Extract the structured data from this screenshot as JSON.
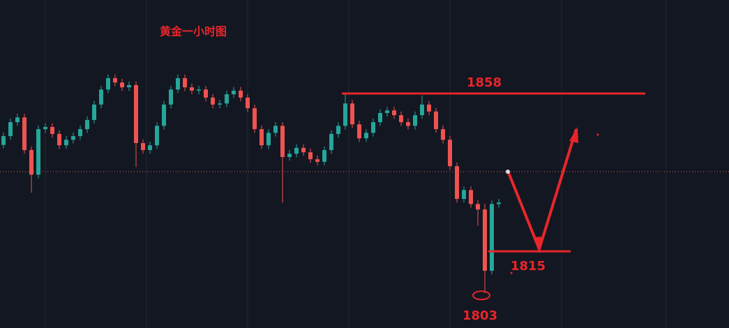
{
  "chart_data": {
    "type": "candlestick",
    "title": "黄金一小时图",
    "open": [
      1844.0,
      1846.4,
      1850.2,
      1851.5,
      1842.6,
      1835.9,
      1848.3,
      1848.9,
      1847.0,
      1843.9,
      1845.4,
      1846.4,
      1848.3,
      1850.8,
      1855.0,
      1859.1,
      1862.2,
      1861.0,
      1859.7,
      1860.3,
      1844.5,
      1842.6,
      1843.9,
      1849.2,
      1855.0,
      1859.1,
      1862.2,
      1859.7,
      1858.8,
      1859.1,
      1856.9,
      1855.0,
      1855.3,
      1857.8,
      1858.8,
      1856.9,
      1854.0,
      1848.3,
      1843.9,
      1847.3,
      1849.2,
      1840.7,
      1841.6,
      1843.2,
      1842.0,
      1840.1,
      1839.4,
      1842.6,
      1847.0,
      1849.2,
      1855.3,
      1849.6,
      1845.8,
      1847.3,
      1850.2,
      1852.7,
      1853.4,
      1852.1,
      1850.2,
      1849.2,
      1852.1,
      1855.0,
      1853.1,
      1848.3,
      1845.4,
      1838.2,
      1829.3,
      1831.7,
      1827.9,
      1826.4,
      1809.7,
      1827.9
    ],
    "high": [
      1847.4,
      1851.2,
      1852.5,
      1852.5,
      1843.6,
      1849.3,
      1849.9,
      1849.9,
      1848.0,
      1846.4,
      1847.4,
      1849.3,
      1851.8,
      1856.0,
      1860.1,
      1863.2,
      1863.2,
      1862.0,
      1861.3,
      1861.3,
      1845.5,
      1844.9,
      1850.2,
      1856.0,
      1860.1,
      1863.2,
      1863.2,
      1860.7,
      1860.1,
      1860.1,
      1857.9,
      1856.3,
      1858.8,
      1859.8,
      1859.8,
      1857.9,
      1855.0,
      1849.3,
      1848.3,
      1850.2,
      1850.2,
      1842.6,
      1844.2,
      1844.2,
      1843.0,
      1841.1,
      1843.6,
      1848.0,
      1850.2,
      1858.0,
      1856.3,
      1850.6,
      1848.3,
      1851.2,
      1853.7,
      1854.4,
      1854.4,
      1853.1,
      1851.2,
      1853.1,
      1857.5,
      1856.0,
      1854.1,
      1849.3,
      1846.4,
      1839.2,
      1832.7,
      1832.7,
      1828.9,
      1828.0,
      1828.9,
      1829.3
    ],
    "low": [
      1843.0,
      1845.4,
      1849.2,
      1841.6,
      1831.0,
      1834.9,
      1847.3,
      1846.0,
      1842.9,
      1842.9,
      1844.4,
      1845.4,
      1847.3,
      1849.8,
      1854.0,
      1858.1,
      1860.0,
      1858.7,
      1858.7,
      1838.0,
      1841.6,
      1841.6,
      1842.9,
      1848.2,
      1854.0,
      1858.1,
      1858.7,
      1857.8,
      1857.8,
      1855.9,
      1854.0,
      1854.0,
      1854.3,
      1856.8,
      1855.9,
      1853.0,
      1847.3,
      1842.9,
      1842.9,
      1846.3,
      1828.3,
      1839.7,
      1840.6,
      1841.0,
      1839.1,
      1838.4,
      1838.4,
      1841.6,
      1846.0,
      1848.2,
      1848.6,
      1844.8,
      1844.8,
      1846.3,
      1849.2,
      1851.7,
      1851.1,
      1849.2,
      1848.2,
      1848.2,
      1851.1,
      1852.1,
      1847.3,
      1844.4,
      1837.2,
      1828.3,
      1828.3,
      1826.9,
      1822.0,
      1803.6,
      1808.7,
      1826.9
    ],
    "close": [
      1846.4,
      1850.2,
      1851.5,
      1842.6,
      1835.9,
      1848.3,
      1848.9,
      1847.0,
      1843.9,
      1845.4,
      1846.4,
      1848.3,
      1850.8,
      1855.0,
      1859.1,
      1862.2,
      1861.0,
      1859.7,
      1860.3,
      1844.5,
      1842.6,
      1843.9,
      1849.2,
      1855.0,
      1859.1,
      1862.2,
      1859.7,
      1858.8,
      1859.1,
      1856.9,
      1855.0,
      1855.3,
      1857.8,
      1858.8,
      1856.9,
      1854.0,
      1848.3,
      1843.9,
      1847.3,
      1849.2,
      1840.7,
      1841.6,
      1843.2,
      1842.0,
      1840.1,
      1839.4,
      1842.6,
      1847.0,
      1849.2,
      1855.3,
      1849.6,
      1845.8,
      1847.3,
      1850.2,
      1852.7,
      1853.4,
      1852.1,
      1850.2,
      1849.2,
      1852.1,
      1855.0,
      1853.1,
      1848.3,
      1845.4,
      1838.2,
      1829.3,
      1831.7,
      1827.9,
      1826.4,
      1809.7,
      1827.9,
      1828.3
    ],
    "up_color": "#26a69a",
    "down_color": "#ef5350",
    "price_line": 1836.7,
    "levels": [
      1858,
      1815,
      1803
    ],
    "level_color": "#e8262a",
    "ylim": [
      1794.1,
      1883.5
    ]
  }
}
